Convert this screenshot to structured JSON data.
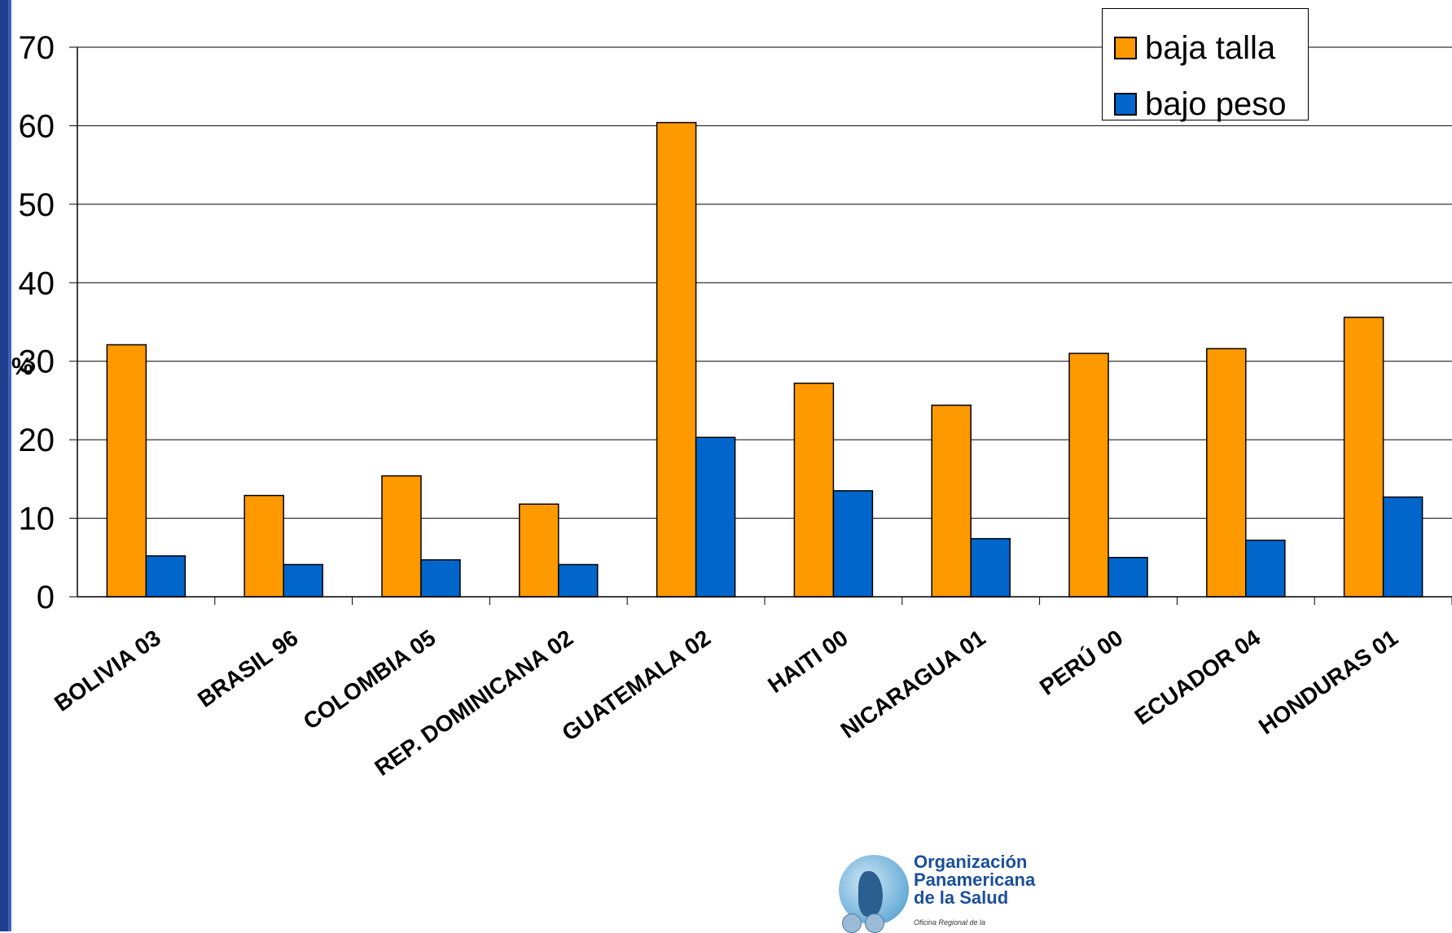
{
  "chart_data": {
    "type": "bar",
    "ylabel": "%",
    "xlabel": "",
    "ylim": [
      0,
      70
    ],
    "yticks": [
      0,
      10,
      20,
      30,
      40,
      50,
      60,
      70
    ],
    "grid": true,
    "legend_position": "top-right",
    "categories": [
      "BOLIVIA 03",
      "BRASIL 96",
      "COLOMBIA 05",
      "REP. DOMINICANA  02",
      "GUATEMALA 02",
      "HAITI 00",
      "NICARAGUA 01",
      "PERÚ 00",
      "ECUADOR 04",
      "HONDURAS 01"
    ],
    "series": [
      {
        "name": "baja talla",
        "color": "#FF9900",
        "values": [
          32.1,
          12.9,
          15.4,
          11.8,
          60.4,
          27.2,
          24.4,
          31.0,
          31.6,
          35.6
        ]
      },
      {
        "name": "bajo peso",
        "color": "#0066CC",
        "values": [
          5.2,
          4.1,
          4.7,
          4.1,
          20.3,
          13.5,
          7.4,
          5.0,
          7.2,
          12.7
        ]
      }
    ]
  },
  "logo": {
    "line1": "Organización",
    "line2": "Panamericana",
    "line3": "de la Salud",
    "small": "Oficina Regional de la"
  }
}
